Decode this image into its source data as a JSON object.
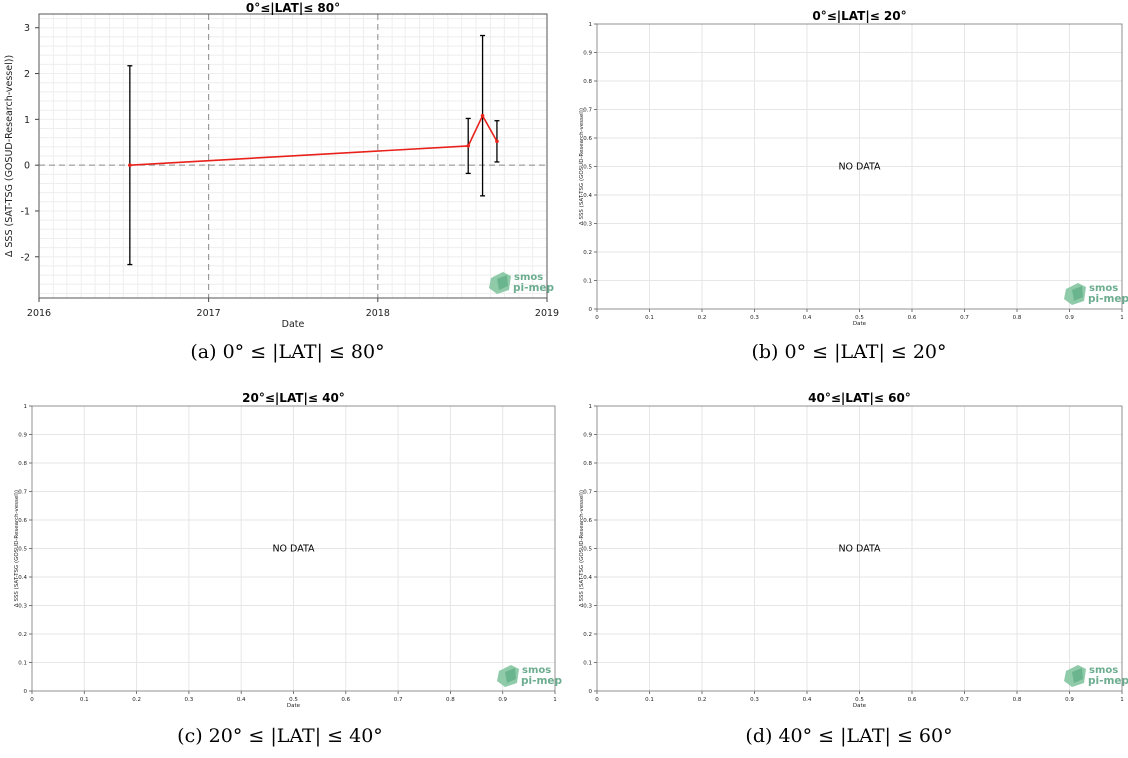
{
  "chart_data": [
    {
      "type": "line",
      "title": "0°≤|LAT|≤ 80°",
      "xlabel": "Date",
      "ylabel": "Δ SSS (SAT-TSG (GOSUD-Research-vessel))",
      "xlim": [
        "2016-01-01",
        "2019-01-01"
      ],
      "ylim": [
        -2.9,
        3.3
      ],
      "x_ticks": [
        "2016",
        "2017",
        "2018",
        "2019"
      ],
      "y_ticks": [
        -2,
        -1,
        0,
        1,
        2,
        3
      ],
      "grid": true,
      "series": [
        {
          "color": "#e8221b",
          "x": [
            "2016-07-15",
            "2018-07-15",
            "2018-08-15",
            "2018-09-15"
          ],
          "y": [
            0.0,
            0.42,
            1.08,
            0.52
          ],
          "error": [
            2.17,
            0.6,
            1.75,
            0.45
          ]
        }
      ],
      "logo": "smos pi-mep",
      "caption": "(a) 0° ≤ |LAT| ≤ 80°"
    },
    {
      "type": "line",
      "title": "0°≤|LAT|≤ 20°",
      "xlabel": "Date",
      "ylabel": "Δ SSS (SAT-TSG (GOSUD-Research-vessel))",
      "xlim": [
        0,
        1
      ],
      "ylim": [
        0,
        1
      ],
      "x_ticks": [
        "0",
        "0.1",
        "0.2",
        "0.3",
        "0.4",
        "0.5",
        "0.6",
        "0.7",
        "0.8",
        "0.9",
        "1"
      ],
      "y_ticks": [
        "0",
        "0.1",
        "0.2",
        "0.3",
        "0.4",
        "0.5",
        "0.6",
        "0.7",
        "0.8",
        "0.9",
        "1"
      ],
      "grid": true,
      "series": [],
      "annotation": "NO DATA",
      "logo": "smos pi-mep",
      "caption": "(b) 0° ≤ |LAT| ≤ 20°"
    },
    {
      "type": "line",
      "title": "20°≤|LAT|≤ 40°",
      "xlabel": "Date",
      "ylabel": "Δ SSS (SAT-TSG (GOSUD-Research-vessel))",
      "xlim": [
        0,
        1
      ],
      "ylim": [
        0,
        1
      ],
      "x_ticks": [
        "0",
        "0.1",
        "0.2",
        "0.3",
        "0.4",
        "0.5",
        "0.6",
        "0.7",
        "0.8",
        "0.9",
        "1"
      ],
      "y_ticks": [
        "0",
        "0.1",
        "0.2",
        "0.3",
        "0.4",
        "0.5",
        "0.6",
        "0.7",
        "0.8",
        "0.9",
        "1"
      ],
      "grid": true,
      "series": [],
      "annotation": "NO DATA",
      "logo": "smos pi-mep",
      "caption": "(c) 20° ≤ |LAT| ≤ 40°"
    },
    {
      "type": "line",
      "title": "40°≤|LAT|≤ 60°",
      "xlabel": "Date",
      "ylabel": "Δ SSS (SAT-TSG (GOSUD-Research-vessel))",
      "xlim": [
        0,
        1
      ],
      "ylim": [
        0,
        1
      ],
      "x_ticks": [
        "0",
        "0.1",
        "0.2",
        "0.3",
        "0.4",
        "0.5",
        "0.6",
        "0.7",
        "0.8",
        "0.9",
        "1"
      ],
      "y_ticks": [
        "0",
        "0.1",
        "0.2",
        "0.3",
        "0.4",
        "0.5",
        "0.6",
        "0.7",
        "0.8",
        "0.9",
        "1"
      ],
      "grid": true,
      "series": [],
      "annotation": "NO DATA",
      "logo": "smos pi-mep",
      "caption": "(d) 40° ≤ |LAT| ≤ 60°"
    }
  ]
}
